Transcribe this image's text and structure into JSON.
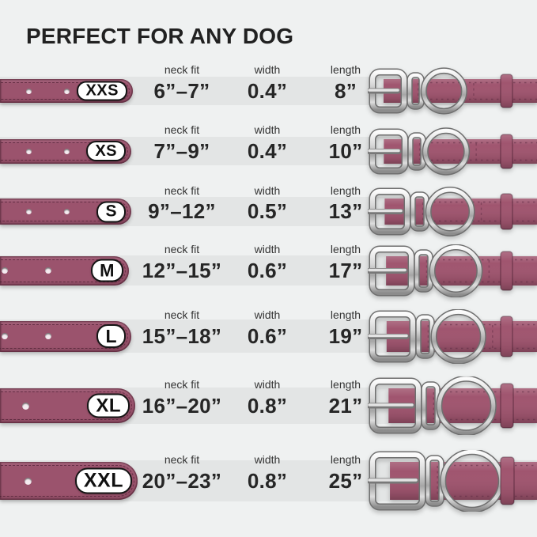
{
  "title": "PERFECT FOR ANY DOG",
  "columns": {
    "neck_fit": "neck fit",
    "width": "width",
    "length": "length"
  },
  "rows": [
    {
      "size": "XXS",
      "neck_fit": "6”–7”",
      "width": "0.4”",
      "length": "8”"
    },
    {
      "size": "XS",
      "neck_fit": "7”–9”",
      "width": "0.4”",
      "length": "10”"
    },
    {
      "size": "S",
      "neck_fit": "9”–12”",
      "width": "0.5”",
      "length": "13”"
    },
    {
      "size": "M",
      "neck_fit": "12”–15”",
      "width": "0.6”",
      "length": "17”"
    },
    {
      "size": "L",
      "neck_fit": "15”–18”",
      "width": "0.6”",
      "length": "19”"
    },
    {
      "size": "XL",
      "neck_fit": "16”–20”",
      "width": "0.8”",
      "length": "21”"
    },
    {
      "size": "XXL",
      "neck_fit": "20”–23”",
      "width": "0.8”",
      "length": "25”"
    }
  ],
  "colors": {
    "background": "#eff1f1",
    "row_band": "#e3e5e5",
    "strap": "#9b536d",
    "strap_right": "#a0556f",
    "stitch": "#5f2c44",
    "metal": "#b9b9b9",
    "pill_bg": "#ffffff",
    "pill_border": "#151515",
    "title": "#212121",
    "label": "#333333",
    "value": "#262626"
  },
  "icons": {
    "left_graphic": "collar-strap-icon",
    "right_graphic": "collar-buckle-icon"
  }
}
